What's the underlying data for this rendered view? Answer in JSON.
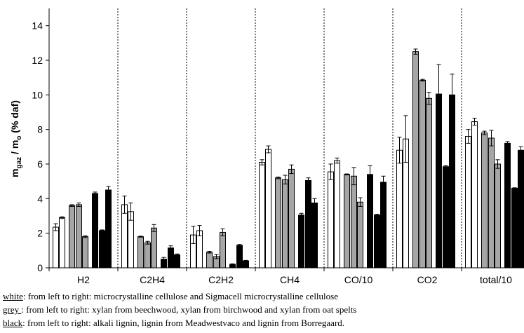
{
  "chart_data": {
    "type": "bar",
    "ylabel_main": "m",
    "ylabel_sub1": "gaz",
    "ylabel_mid": " / m",
    "ylabel_sub2": "o",
    "ylabel_tail": " (% daf)",
    "ylim": [
      0,
      15
    ],
    "yticks": [
      0,
      2,
      4,
      6,
      8,
      10,
      12,
      14
    ],
    "grid": false,
    "categories": [
      "H2",
      "C2H4",
      "C2H2",
      "CH4",
      "CO/10",
      "CO2",
      "total/10"
    ],
    "series": [
      {
        "color": "#ffffff",
        "values": [
          2.35,
          3.65,
          1.9,
          6.1,
          5.55,
          6.8,
          7.6
        ],
        "errors": [
          0.2,
          0.5,
          0.5,
          0.15,
          0.45,
          0.75,
          0.4
        ]
      },
      {
        "color": "#ffffff",
        "values": [
          2.9,
          3.25,
          2.15,
          6.85,
          6.2,
          7.45,
          8.45
        ],
        "errors": [
          0.05,
          0.5,
          0.3,
          0.2,
          0.15,
          1.35,
          0.2
        ]
      },
      {
        "color": "#a6a6a6",
        "values": [
          3.6,
          1.8,
          0.9,
          5.2,
          5.4,
          12.5,
          7.8
        ],
        "errors": [
          0.05,
          0.03,
          0.05,
          0.05,
          0.03,
          0.15,
          0.1
        ]
      },
      {
        "color": "#a6a6a6",
        "values": [
          3.65,
          1.45,
          0.65,
          5.1,
          5.3,
          10.85,
          7.5
        ],
        "errors": [
          0.1,
          0.08,
          0.12,
          0.25,
          0.5,
          0.05,
          0.45
        ]
      },
      {
        "color": "#a6a6a6",
        "values": [
          1.8,
          2.3,
          2.05,
          5.7,
          3.8,
          9.8,
          6.0
        ],
        "errors": [
          0.05,
          0.2,
          0.2,
          0.25,
          0.25,
          0.35,
          0.25
        ]
      },
      {
        "color": "#000000",
        "values": [
          4.3,
          0.5,
          0.2,
          3.05,
          5.4,
          10.05,
          7.2
        ],
        "errors": [
          0.08,
          0.1,
          0.03,
          0.1,
          0.5,
          1.7,
          0.1
        ]
      },
      {
        "color": "#000000",
        "values": [
          2.15,
          1.15,
          1.3,
          5.05,
          3.05,
          5.85,
          4.6
        ],
        "errors": [
          0.04,
          0.12,
          0.05,
          0.15,
          0.05,
          0.05,
          0.03
        ]
      },
      {
        "color": "#000000",
        "values": [
          4.5,
          0.75,
          0.4,
          3.75,
          4.95,
          10.0,
          6.8
        ],
        "errors": [
          0.2,
          0.05,
          0.03,
          0.25,
          0.35,
          1.2,
          0.2
        ]
      }
    ]
  },
  "caption": [
    {
      "key": "white",
      "sep": ": ",
      "text": "from left to right: microcrystalline cellulose and Sigmacell microcrystalline cellulose"
    },
    {
      "key": "grey ",
      "sep": " : ",
      "text": "from left to right: xylan from beechwood, xylan from birchwood and xylan from oat spelts"
    },
    {
      "key": "black",
      "sep": ": ",
      "text": "from left to right: alkali lignin, lignin from Meadwestvaco and lignin from Borregaard."
    }
  ]
}
